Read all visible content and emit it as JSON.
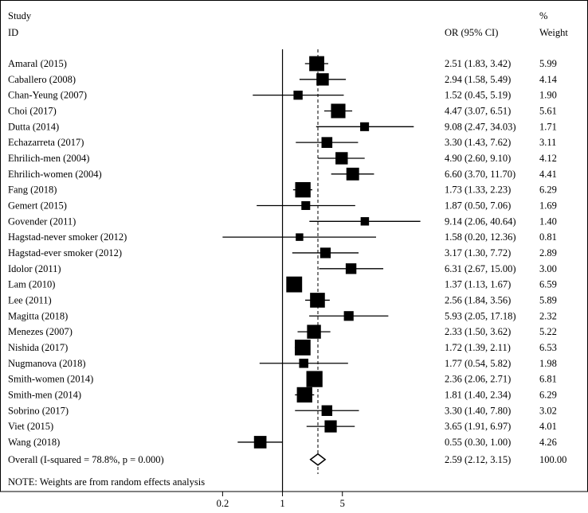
{
  "chart_data": {
    "type": "forest",
    "x_scale": "log",
    "xlim": [
      0.1,
      70
    ],
    "x_ticks": [
      {
        "value": 0.2,
        "label": "0.2"
      },
      {
        "value": 1,
        "label": "1"
      },
      {
        "value": 5,
        "label": "5"
      }
    ],
    "null_value": 1,
    "pooled_value": 2.59,
    "headers": {
      "study_line1": "Study",
      "study_line2": "ID",
      "or_header": "OR (95% CI)",
      "weight_line1": "%",
      "weight_line2": "Weight"
    },
    "studies": [
      {
        "id": "Amaral (2015)",
        "or": 2.51,
        "lo": 1.83,
        "hi": 3.42,
        "ci_text": "2.51 (1.83, 3.42)",
        "weight": 5.99,
        "weight_text": "5.99"
      },
      {
        "id": "Caballero (2008)",
        "or": 2.94,
        "lo": 1.58,
        "hi": 5.49,
        "ci_text": "2.94 (1.58, 5.49)",
        "weight": 4.14,
        "weight_text": "4.14"
      },
      {
        "id": "Chan-Yeung (2007)",
        "or": 1.52,
        "lo": 0.45,
        "hi": 5.19,
        "ci_text": "1.52 (0.45, 5.19)",
        "weight": 1.9,
        "weight_text": "1.90"
      },
      {
        "id": "Choi (2017)",
        "or": 4.47,
        "lo": 3.07,
        "hi": 6.51,
        "ci_text": "4.47 (3.07, 6.51)",
        "weight": 5.61,
        "weight_text": "5.61"
      },
      {
        "id": "Dutta (2014)",
        "or": 9.08,
        "lo": 2.47,
        "hi": 34.03,
        "ci_text": "9.08 (2.47, 34.03)",
        "weight": 1.71,
        "weight_text": "1.71"
      },
      {
        "id": "Echazarreta (2017)",
        "or": 3.3,
        "lo": 1.43,
        "hi": 7.62,
        "ci_text": "3.30 (1.43, 7.62)",
        "weight": 3.11,
        "weight_text": "3.11"
      },
      {
        "id": "Ehrilich-men (2004)",
        "or": 4.9,
        "lo": 2.6,
        "hi": 9.1,
        "ci_text": "4.90 (2.60, 9.10)",
        "weight": 4.12,
        "weight_text": "4.12"
      },
      {
        "id": "Ehrilich-women (2004)",
        "or": 6.6,
        "lo": 3.7,
        "hi": 11.7,
        "ci_text": "6.60 (3.70, 11.70)",
        "weight": 4.41,
        "weight_text": "4.41"
      },
      {
        "id": "Fang (2018)",
        "or": 1.73,
        "lo": 1.33,
        "hi": 2.23,
        "ci_text": "1.73 (1.33, 2.23)",
        "weight": 6.29,
        "weight_text": "6.29"
      },
      {
        "id": "Gemert (2015)",
        "or": 1.87,
        "lo": 0.5,
        "hi": 7.06,
        "ci_text": "1.87 (0.50, 7.06)",
        "weight": 1.69,
        "weight_text": "1.69"
      },
      {
        "id": "Govender (2011)",
        "or": 9.14,
        "lo": 2.06,
        "hi": 40.64,
        "ci_text": "9.14 (2.06, 40.64)",
        "weight": 1.4,
        "weight_text": "1.40"
      },
      {
        "id": "Hagstad-never smoker (2012)",
        "or": 1.58,
        "lo": 0.2,
        "hi": 12.36,
        "ci_text": "1.58 (0.20, 12.36)",
        "weight": 0.81,
        "weight_text": "0.81"
      },
      {
        "id": "Hagstad-ever smoker (2012)",
        "or": 3.17,
        "lo": 1.3,
        "hi": 7.72,
        "ci_text": "3.17 (1.30, 7.72)",
        "weight": 2.89,
        "weight_text": "2.89"
      },
      {
        "id": "Idolor (2011)",
        "or": 6.31,
        "lo": 2.67,
        "hi": 15.0,
        "ci_text": "6.31 (2.67, 15.00)",
        "weight": 3.0,
        "weight_text": "3.00"
      },
      {
        "id": "Lam (2010)",
        "or": 1.37,
        "lo": 1.13,
        "hi": 1.67,
        "ci_text": "1.37 (1.13, 1.67)",
        "weight": 6.59,
        "weight_text": "6.59"
      },
      {
        "id": "Lee (2011)",
        "or": 2.56,
        "lo": 1.84,
        "hi": 3.56,
        "ci_text": "2.56 (1.84, 3.56)",
        "weight": 5.89,
        "weight_text": "5.89"
      },
      {
        "id": "Magitta (2018)",
        "or": 5.93,
        "lo": 2.05,
        "hi": 17.18,
        "ci_text": "5.93 (2.05, 17.18)",
        "weight": 2.32,
        "weight_text": "2.32"
      },
      {
        "id": "Menezes (2007)",
        "or": 2.33,
        "lo": 1.5,
        "hi": 3.62,
        "ci_text": "2.33 (1.50, 3.62)",
        "weight": 5.22,
        "weight_text": "5.22"
      },
      {
        "id": "Nishida (2017)",
        "or": 1.72,
        "lo": 1.39,
        "hi": 2.11,
        "ci_text": "1.72 (1.39, 2.11)",
        "weight": 6.53,
        "weight_text": "6.53"
      },
      {
        "id": "Nugmanova (2018)",
        "or": 1.77,
        "lo": 0.54,
        "hi": 5.82,
        "ci_text": "1.77 (0.54, 5.82)",
        "weight": 1.98,
        "weight_text": "1.98"
      },
      {
        "id": "Smith-women (2014)",
        "or": 2.36,
        "lo": 2.06,
        "hi": 2.71,
        "ci_text": "2.36 (2.06, 2.71)",
        "weight": 6.81,
        "weight_text": "6.81"
      },
      {
        "id": "Smith-men (2014)",
        "or": 1.81,
        "lo": 1.4,
        "hi": 2.34,
        "ci_text": "1.81 (1.40, 2.34)",
        "weight": 6.29,
        "weight_text": "6.29"
      },
      {
        "id": "Sobrino (2017)",
        "or": 3.3,
        "lo": 1.4,
        "hi": 7.8,
        "ci_text": "3.30 (1.40, 7.80)",
        "weight": 3.02,
        "weight_text": "3.02"
      },
      {
        "id": "Viet (2015)",
        "or": 3.65,
        "lo": 1.91,
        "hi": 6.97,
        "ci_text": "3.65 (1.91, 6.97)",
        "weight": 4.01,
        "weight_text": "4.01"
      },
      {
        "id": "Wang (2018)",
        "or": 0.55,
        "lo": 0.3,
        "hi": 1.0,
        "ci_text": "0.55 (0.30, 1.00)",
        "weight": 4.26,
        "weight_text": "4.26"
      }
    ],
    "overall": {
      "label": "Overall  (I-squared = 78.8%, p = 0.000)",
      "or": 2.59,
      "lo": 2.12,
      "hi": 3.15,
      "ci_text": "2.59 (2.12, 3.15)",
      "weight_text": "100.00"
    },
    "note": "NOTE: Weights are from random effects analysis"
  }
}
